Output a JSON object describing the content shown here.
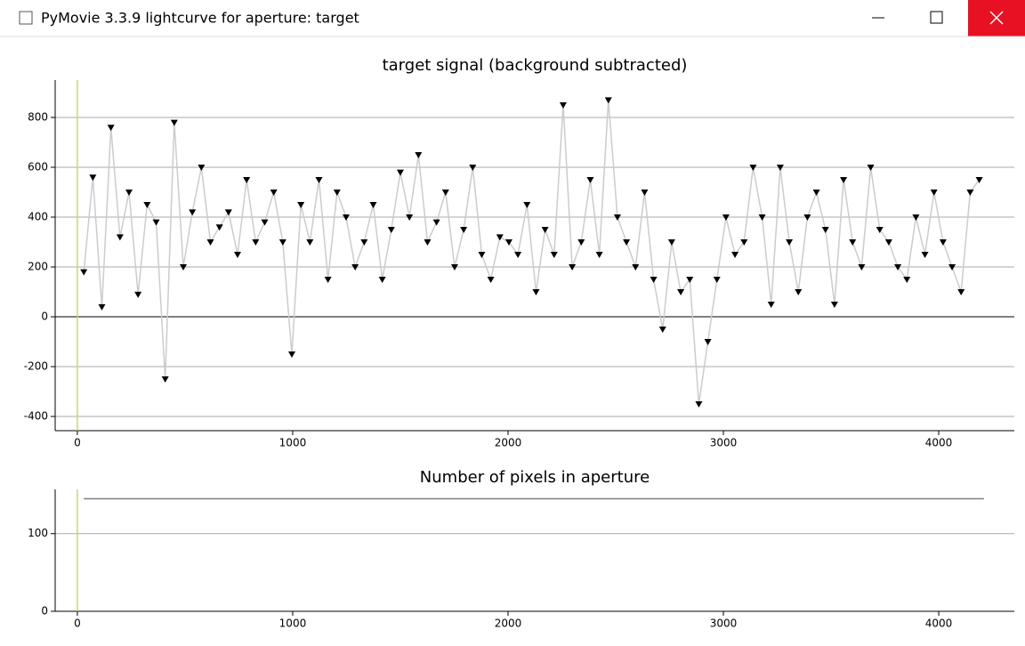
{
  "window": {
    "title": "PyMovie 3.3.9 lightcurve for aperture: target"
  },
  "chart_data": [
    {
      "type": "scatter-line",
      "title": "target signal (background subtracted)",
      "xlim": [
        -103,
        4351
      ],
      "ylim": [
        -457,
        950
      ],
      "xticks": [
        0,
        1000,
        2000,
        3000,
        4000
      ],
      "yticks": [
        -400,
        -200,
        0,
        200,
        400,
        600,
        800
      ],
      "grid": true,
      "series": [
        {
          "color": "#000000",
          "x": [
            30,
            72,
            114,
            156,
            198,
            240,
            282,
            324,
            366,
            408,
            450,
            492,
            534,
            576,
            618,
            660,
            702,
            744,
            786,
            828,
            870,
            912,
            954,
            996,
            1038,
            1080,
            1122,
            1164,
            1206,
            1248,
            1290,
            1332,
            1374,
            1416,
            1458,
            1500,
            1542,
            1584,
            1626,
            1668,
            1710,
            1752,
            1794,
            1836,
            1878,
            1920,
            1962,
            2004,
            2046,
            2088,
            2130,
            2172,
            2214,
            2256,
            2298,
            2340,
            2382,
            2424,
            2466,
            2508,
            2550,
            2592,
            2634,
            2676,
            2718,
            2760,
            2802,
            2844,
            2886,
            2928,
            2970,
            3012,
            3054,
            3096,
            3138,
            3180,
            3222,
            3264,
            3306,
            3348,
            3390,
            3432,
            3474,
            3516,
            3558,
            3600,
            3642,
            3684,
            3726,
            3768,
            3810,
            3852,
            3894,
            3936,
            3978,
            4020,
            4062,
            4104,
            4146,
            4188
          ],
          "values": [
            180,
            560,
            40,
            760,
            320,
            500,
            90,
            450,
            380,
            -250,
            780,
            200,
            420,
            600,
            300,
            360,
            420,
            250,
            550,
            300,
            380,
            500,
            300,
            -150,
            450,
            300,
            550,
            150,
            500,
            400,
            200,
            300,
            450,
            150,
            350,
            580,
            400,
            650,
            300,
            380,
            500,
            200,
            350,
            600,
            250,
            150,
            320,
            300,
            250,
            450,
            100,
            350,
            250,
            850,
            200,
            300,
            550,
            250,
            870,
            400,
            300,
            200,
            500,
            150,
            -50,
            300,
            100,
            150,
            -350,
            -100,
            150,
            400,
            250,
            300,
            600,
            400,
            50,
            600,
            300,
            100,
            400,
            500,
            350,
            50,
            550,
            300,
            200,
            600,
            350,
            300,
            200,
            150,
            400,
            250,
            500,
            300,
            200,
            100,
            500,
            550
          ]
        }
      ]
    },
    {
      "type": "line",
      "title": "Number of pixels in aperture",
      "xlim": [
        -103,
        4351
      ],
      "ylim": [
        0,
        157
      ],
      "xticks": [
        0,
        1000,
        2000,
        3000,
        4000
      ],
      "yticks": [
        0,
        100
      ],
      "grid": true,
      "series": [
        {
          "color": "#808080",
          "x": [
            30,
            4210
          ],
          "values": [
            145,
            145
          ]
        }
      ]
    }
  ]
}
